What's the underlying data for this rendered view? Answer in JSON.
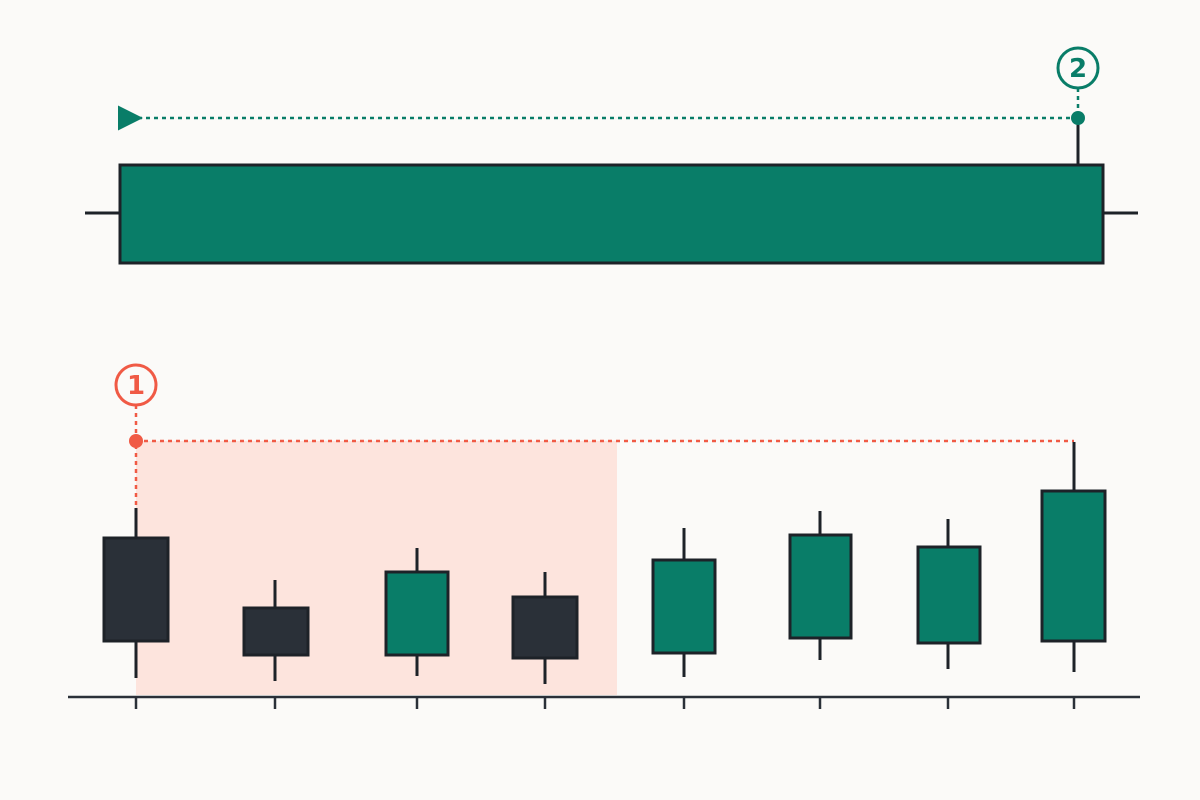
{
  "markers": [
    {
      "label": "1"
    },
    {
      "label": "2"
    }
  ]
}
